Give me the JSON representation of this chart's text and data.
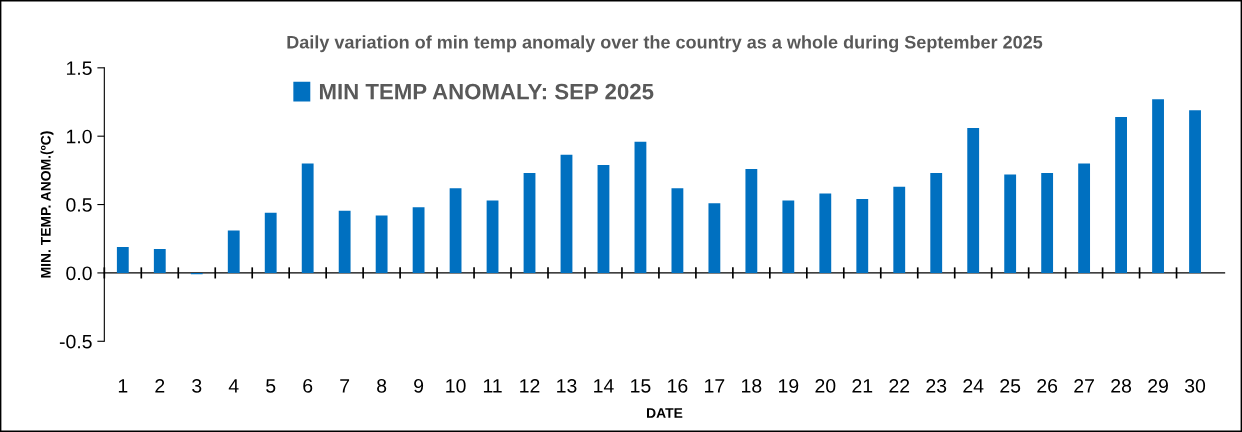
{
  "chart_data": {
    "type": "bar",
    "title": "Daily variation of min temp anomaly over the country as a whole during September 2025",
    "xlabel": "DATE",
    "ylabel": "MIN. TEMP. ANOM.(ºC)",
    "categories": [
      "1",
      "2",
      "3",
      "4",
      "5",
      "6",
      "7",
      "8",
      "9",
      "10",
      "11",
      "12",
      "13",
      "14",
      "15",
      "16",
      "17",
      "18",
      "19",
      "20",
      "21",
      "22",
      "23",
      "24",
      "25",
      "26",
      "27",
      "28",
      "29",
      "30"
    ],
    "series": [
      {
        "name": "MIN TEMP ANOMALY: SEP 2025",
        "color": "#0070c0",
        "values": [
          0.19,
          0.175,
          -0.01,
          0.31,
          0.44,
          0.8,
          0.455,
          0.42,
          0.48,
          0.62,
          0.53,
          0.73,
          0.865,
          0.79,
          0.96,
          0.62,
          0.51,
          0.76,
          0.53,
          0.58,
          0.54,
          0.63,
          0.73,
          1.06,
          0.72,
          0.73,
          0.8,
          1.14,
          1.27,
          1.19
        ]
      }
    ],
    "ylim": [
      -0.5,
      1.5
    ],
    "yticks": [
      {
        "value": -0.5,
        "label": "-0.5"
      },
      {
        "value": 0,
        "label": "0.0"
      },
      {
        "value": 0.5,
        "label": "0.5"
      },
      {
        "value": 1.0,
        "label": "1.0"
      },
      {
        "value": 1.5,
        "label": "1.5"
      }
    ],
    "legend": "top"
  }
}
